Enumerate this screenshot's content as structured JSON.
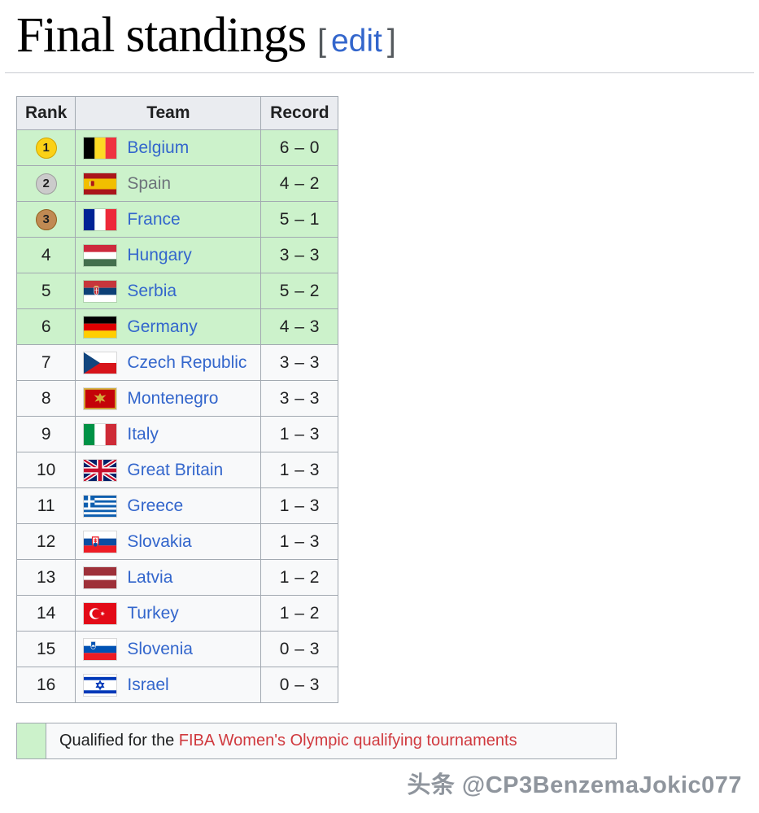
{
  "title": {
    "text": "Final standings",
    "edit": "edit",
    "bracket_open": "[",
    "bracket_close": "]"
  },
  "table": {
    "headers": {
      "rank": "Rank",
      "team": "Team",
      "record": "Record"
    },
    "rows": [
      {
        "rank": "1",
        "medal": "gold",
        "team": "Belgium",
        "flag": "belgium",
        "record": "6 – 0",
        "qualified": true,
        "visited": false
      },
      {
        "rank": "2",
        "medal": "silver",
        "team": "Spain",
        "flag": "spain",
        "record": "4 – 2",
        "qualified": true,
        "visited": true
      },
      {
        "rank": "3",
        "medal": "bronze",
        "team": "France",
        "flag": "france",
        "record": "5 – 1",
        "qualified": true,
        "visited": false
      },
      {
        "rank": "4",
        "medal": null,
        "team": "Hungary",
        "flag": "hungary",
        "record": "3 – 3",
        "qualified": true,
        "visited": false
      },
      {
        "rank": "5",
        "medal": null,
        "team": "Serbia",
        "flag": "serbia",
        "record": "5 – 2",
        "qualified": true,
        "visited": false
      },
      {
        "rank": "6",
        "medal": null,
        "team": "Germany",
        "flag": "germany",
        "record": "4 – 3",
        "qualified": true,
        "visited": false
      },
      {
        "rank": "7",
        "medal": null,
        "team": "Czech Republic",
        "flag": "czech-republic",
        "record": "3 – 3",
        "qualified": false,
        "visited": false
      },
      {
        "rank": "8",
        "medal": null,
        "team": "Montenegro",
        "flag": "montenegro",
        "record": "3 – 3",
        "qualified": false,
        "visited": false
      },
      {
        "rank": "9",
        "medal": null,
        "team": "Italy",
        "flag": "italy",
        "record": "1 – 3",
        "qualified": false,
        "visited": false
      },
      {
        "rank": "10",
        "medal": null,
        "team": "Great Britain",
        "flag": "great-britain",
        "record": "1 – 3",
        "qualified": false,
        "visited": false
      },
      {
        "rank": "11",
        "medal": null,
        "team": "Greece",
        "flag": "greece",
        "record": "1 – 3",
        "qualified": false,
        "visited": false
      },
      {
        "rank": "12",
        "medal": null,
        "team": "Slovakia",
        "flag": "slovakia",
        "record": "1 – 3",
        "qualified": false,
        "visited": false
      },
      {
        "rank": "13",
        "medal": null,
        "team": "Latvia",
        "flag": "latvia",
        "record": "1 – 2",
        "qualified": false,
        "visited": false
      },
      {
        "rank": "14",
        "medal": null,
        "team": "Turkey",
        "flag": "turkey",
        "record": "1 – 2",
        "qualified": false,
        "visited": false
      },
      {
        "rank": "15",
        "medal": null,
        "team": "Slovenia",
        "flag": "slovenia",
        "record": "0 – 3",
        "qualified": false,
        "visited": false
      },
      {
        "rank": "16",
        "medal": null,
        "team": "Israel",
        "flag": "israel",
        "record": "0 – 3",
        "qualified": false,
        "visited": false
      }
    ]
  },
  "legend": {
    "text": "Qualified for the ",
    "link": "FIBA Women's Olympic qualifying tournaments"
  },
  "watermark": "头条 @CP3BenzemaJokic077",
  "colors": {
    "qualified_row": "#ccf2cb",
    "header_bg": "#eaecf0",
    "border": "#a2a9b1",
    "link": "#3366cc",
    "visited_link": "#6d737b",
    "red_link": "#d0393e",
    "gold_medal": "#fbd116",
    "silver_medal": "#cbcbcb",
    "bronze_medal": "#c08a53"
  }
}
